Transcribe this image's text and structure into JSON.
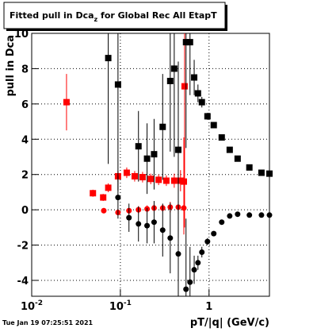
{
  "chart_data": {
    "type": "scatter",
    "title": "Fitted pull in Dca",
    "title_subscript": "z",
    "title_rest": " for Global Rec All EtapT",
    "y_label": "pull in Dca",
    "x_label": "pT/|q| (GeV/c)",
    "timestamp": "Tue Jan 19 07:25:51 2021",
    "log_x": true,
    "grid": true,
    "xlim": [
      0.01,
      4.8
    ],
    "ylim": [
      -4.9,
      10
    ],
    "xticks": [
      {
        "value": 0.01,
        "label": "10",
        "exponent": "-2"
      },
      {
        "value": 0.1,
        "label": "10",
        "exponent": "-1"
      },
      1
    ],
    "yticks": [
      -4,
      -2,
      0,
      2,
      4,
      6,
      8,
      10
    ],
    "series": [
      {
        "marker": "square",
        "color": "#ff0000",
        "x": [
          0.0247,
          0.049,
          0.064,
          0.073,
          0.094,
          0.118,
          0.145,
          0.178,
          0.22,
          0.27,
          0.33,
          0.405,
          0.477,
          0.52,
          0.53
        ],
        "values": [
          6.1,
          0.94,
          0.7,
          1.25,
          1.9,
          2.1,
          1.9,
          1.85,
          1.75,
          1.7,
          1.65,
          1.65,
          1.65,
          1.6,
          7.0
        ],
        "errors": [
          1.6,
          0.2,
          0.2,
          0.25,
          0.3,
          0.3,
          0.3,
          0.3,
          0.3,
          0.3,
          0.3,
          0.4,
          0.6,
          2.5,
          8
        ]
      },
      {
        "marker": "circle",
        "color": "#ff0000",
        "x": [
          0.065,
          0.094,
          0.125,
          0.16,
          0.2,
          0.24,
          0.3,
          0.365,
          0.45,
          0.52
        ],
        "values": [
          -0.05,
          -0.15,
          -0.05,
          0.0,
          0.05,
          0.1,
          0.1,
          0.15,
          0.15,
          0.1
        ],
        "errors": [
          0.15,
          0.15,
          0.15,
          0.2,
          0.2,
          0.2,
          0.2,
          0.3,
          0.4,
          1.5
        ]
      },
      {
        "marker": "square",
        "color": "#000000",
        "x": [
          0.073,
          0.094,
          0.16,
          0.2,
          0.24,
          0.3,
          0.365,
          0.405,
          0.45,
          0.55,
          0.61,
          0.68,
          0.75,
          0.83,
          0.96,
          1.13,
          1.39,
          1.71,
          2.1,
          2.85,
          3.9,
          4.8
        ],
        "values": [
          8.6,
          7.1,
          3.6,
          2.9,
          3.15,
          4.7,
          7.3,
          8.0,
          3.4,
          9.5,
          9.5,
          7.5,
          6.6,
          6.1,
          5.3,
          4.8,
          4.1,
          3.4,
          2.9,
          2.4,
          2.1,
          2.05
        ],
        "errors": [
          6,
          6,
          2,
          2,
          2,
          3,
          4,
          5,
          5,
          6,
          3,
          1,
          0.5,
          0.3,
          0.2,
          0.1,
          0.1,
          0.1,
          0.1,
          0.1,
          0.1,
          0.1
        ]
      },
      {
        "marker": "circle",
        "color": "#000000",
        "x": [
          0.094,
          0.125,
          0.16,
          0.2,
          0.24,
          0.3,
          0.365,
          0.45,
          0.55,
          0.61,
          0.68,
          0.75,
          0.83,
          0.96,
          1.13,
          1.39,
          1.71,
          2.1,
          2.85,
          3.9,
          4.8
        ],
        "values": [
          0.7,
          -0.45,
          -0.8,
          -0.9,
          -0.7,
          -1.15,
          -1.6,
          -2.5,
          -4.5,
          -4.1,
          -3.4,
          -3.0,
          -2.4,
          -1.8,
          -1.35,
          -0.7,
          -0.35,
          -0.25,
          -0.3,
          -0.3,
          -0.3
        ],
        "errors": [
          1.2,
          0.8,
          1,
          1,
          1.2,
          1.5,
          2,
          3,
          4,
          2,
          0.8,
          0.4,
          0.3,
          0.2,
          0.1,
          0.1,
          0.1,
          0.1,
          0.1,
          0.1,
          0.1
        ]
      }
    ]
  }
}
